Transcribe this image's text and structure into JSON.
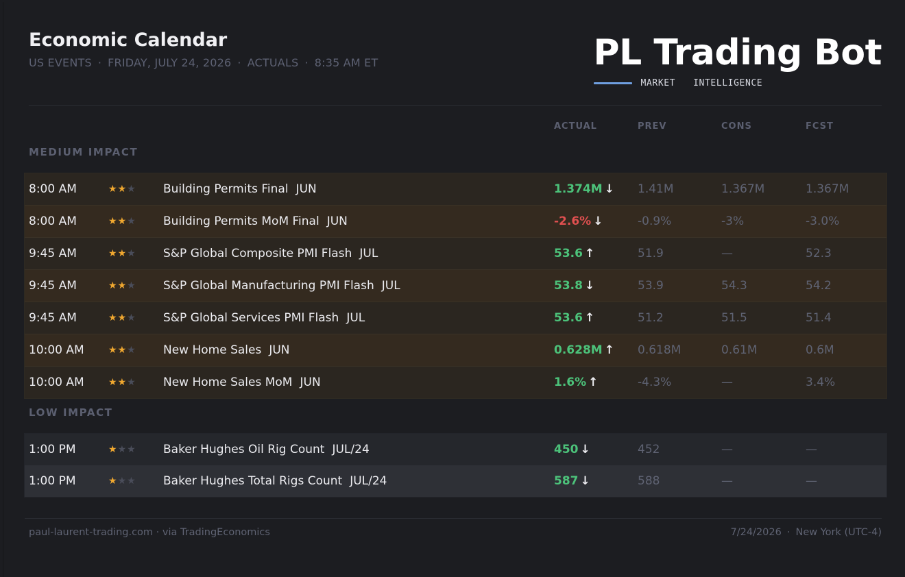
{
  "header": {
    "title": "Economic Calendar",
    "subtitle_parts": [
      "US EVENTS",
      "FRIDAY, JULY 24, 2026",
      "ACTUALS",
      "8:35 AM ET"
    ],
    "separator": "·"
  },
  "brand": {
    "title": "PL Trading Bot",
    "sub_word1": "MARKET",
    "sub_word2": "INTELLIGENCE",
    "accent_color": "#6f9fe0"
  },
  "columns": {
    "actual": "ACTUAL",
    "prev": "PREV",
    "cons": "CONS",
    "fcst": "FCST"
  },
  "sections": [
    {
      "label": "MEDIUM IMPACT",
      "rows": [
        {
          "time": "8:00 AM",
          "stars": 2,
          "event": "Building Permits Final",
          "period": "JUN",
          "actual": "1.374M",
          "actual_sign": "positive",
          "arrow": "↓",
          "prev": "1.41M",
          "cons": "1.367M",
          "fcst": "1.367M"
        },
        {
          "time": "8:00 AM",
          "stars": 2,
          "event": "Building Permits MoM Final",
          "period": "JUN",
          "actual": "-2.6%",
          "actual_sign": "negative",
          "arrow": "↓",
          "prev": "-0.9%",
          "cons": "-3%",
          "fcst": "-3.0%"
        },
        {
          "time": "9:45 AM",
          "stars": 2,
          "event": "S&P Global Composite PMI Flash",
          "period": "JUL",
          "actual": "53.6",
          "actual_sign": "positive",
          "arrow": "↑",
          "prev": "51.9",
          "cons": "—",
          "fcst": "52.3"
        },
        {
          "time": "9:45 AM",
          "stars": 2,
          "event": "S&P Global Manufacturing PMI Flash",
          "period": "JUL",
          "actual": "53.8",
          "actual_sign": "positive",
          "arrow": "↓",
          "prev": "53.9",
          "cons": "54.3",
          "fcst": "54.2"
        },
        {
          "time": "9:45 AM",
          "stars": 2,
          "event": "S&P Global Services PMI Flash",
          "period": "JUL",
          "actual": "53.6",
          "actual_sign": "positive",
          "arrow": "↑",
          "prev": "51.2",
          "cons": "51.5",
          "fcst": "51.4"
        },
        {
          "time": "10:00 AM",
          "stars": 2,
          "event": "New Home Sales",
          "period": "JUN",
          "actual": "0.628M",
          "actual_sign": "positive",
          "arrow": "↑",
          "prev": "0.618M",
          "cons": "0.61M",
          "fcst": "0.6M"
        },
        {
          "time": "10:00 AM",
          "stars": 2,
          "event": "New Home Sales MoM",
          "period": "JUN",
          "actual": "1.6%",
          "actual_sign": "positive",
          "arrow": "↑",
          "prev": "-4.3%",
          "cons": "—",
          "fcst": "3.4%"
        }
      ]
    },
    {
      "label": "LOW IMPACT",
      "rows": [
        {
          "time": "1:00 PM",
          "stars": 1,
          "event": "Baker Hughes Oil Rig Count",
          "period": "JUL/24",
          "actual": "450",
          "actual_sign": "positive",
          "arrow": "↓",
          "prev": "452",
          "cons": "—",
          "fcst": "—"
        },
        {
          "time": "1:00 PM",
          "stars": 1,
          "event": "Baker Hughes Total Rigs Count",
          "period": "JUL/24",
          "actual": "587",
          "actual_sign": "positive",
          "arrow": "↓",
          "prev": "588",
          "cons": "—",
          "fcst": "—"
        }
      ]
    }
  ],
  "footer": {
    "left": "paul-laurent-trading.com · via TradingEconomics",
    "date": "7/24/2026",
    "separator": "·",
    "timezone": "New York (UTC-4)"
  },
  "colors": {
    "positive": "#4cc27a",
    "negative": "#e05050",
    "star_on": "#f0a830",
    "star_off": "#4a4d5a"
  },
  "icons": {
    "star": "star-icon",
    "arrow_up": "arrow-up-icon",
    "arrow_down": "arrow-down-icon"
  }
}
